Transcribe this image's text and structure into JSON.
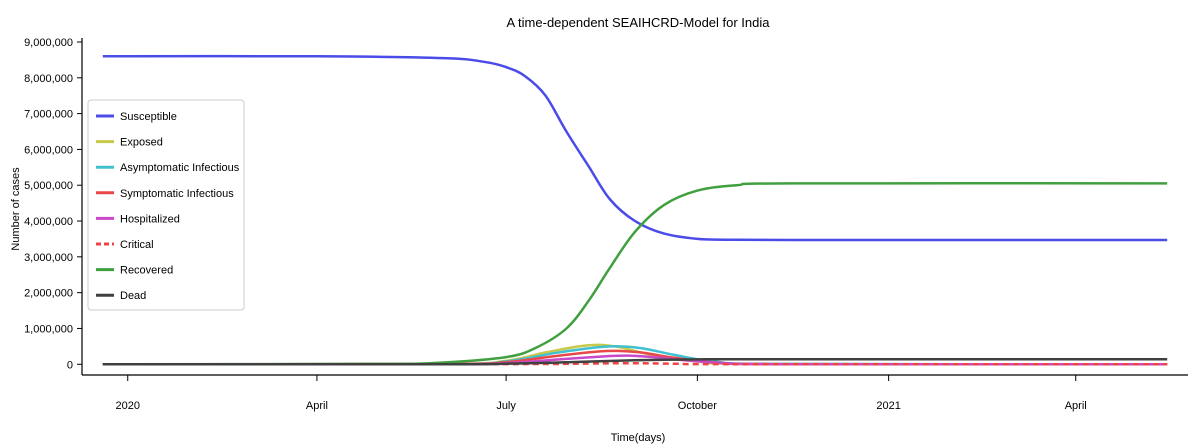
{
  "chart_data": {
    "type": "line",
    "title": "A time-dependent SEAIHCRD-Model for India",
    "xlabel": "Time(days)",
    "ylabel": "Number of cases",
    "x_start": "2019-12-20",
    "x_end": "2021-05-15",
    "xlim": [
      "2019-12-10",
      "2021-05-25"
    ],
    "ylim": [
      -300000,
      9000000
    ],
    "x_ticks": [
      {
        "date": "2020-01-01",
        "label": "2020"
      },
      {
        "date": "2020-04-01",
        "label": "April"
      },
      {
        "date": "2020-07-01",
        "label": "July"
      },
      {
        "date": "2020-10-01",
        "label": "October"
      },
      {
        "date": "2021-01-01",
        "label": "2021"
      },
      {
        "date": "2021-04-01",
        "label": "April"
      }
    ],
    "y_ticks": [
      0,
      1000000,
      2000000,
      3000000,
      4000000,
      5000000,
      6000000,
      7000000,
      8000000,
      9000000
    ],
    "y_tick_labels": [
      "0",
      "1,000,000",
      "2,000,000",
      "3,000,000",
      "4,000,000",
      "5,000,000",
      "6,000,000",
      "7,000,000",
      "8,000,000",
      "9,000,000"
    ],
    "grid": false,
    "legend_position": "left",
    "series": [
      {
        "name": "Susceptible",
        "color": "#4b4be8",
        "dash": false,
        "points": [
          [
            "2019-12-20",
            8600000
          ],
          [
            "2020-04-01",
            8600000
          ],
          [
            "2020-06-01",
            8550000
          ],
          [
            "2020-06-20",
            8450000
          ],
          [
            "2020-07-01",
            8300000
          ],
          [
            "2020-07-10",
            8050000
          ],
          [
            "2020-07-20",
            7500000
          ],
          [
            "2020-07-30",
            6500000
          ],
          [
            "2020-08-10",
            5500000
          ],
          [
            "2020-08-20",
            4600000
          ],
          [
            "2020-09-01",
            4000000
          ],
          [
            "2020-09-15",
            3650000
          ],
          [
            "2020-10-01",
            3500000
          ],
          [
            "2020-10-15",
            3480000
          ],
          [
            "2020-11-15",
            3470000
          ],
          [
            "2021-05-15",
            3470000
          ]
        ]
      },
      {
        "name": "Exposed",
        "color": "#c8c84a",
        "dash": false,
        "points": [
          [
            "2019-12-20",
            0
          ],
          [
            "2020-06-01",
            10000
          ],
          [
            "2020-07-01",
            100000
          ],
          [
            "2020-07-20",
            330000
          ],
          [
            "2020-08-05",
            500000
          ],
          [
            "2020-08-15",
            540000
          ],
          [
            "2020-08-25",
            470000
          ],
          [
            "2020-09-10",
            250000
          ],
          [
            "2020-10-01",
            80000
          ],
          [
            "2020-11-01",
            10000
          ],
          [
            "2021-05-15",
            0
          ]
        ]
      },
      {
        "name": "Asymptomatic Infectious",
        "color": "#40c0d0",
        "dash": false,
        "points": [
          [
            "2019-12-20",
            0
          ],
          [
            "2020-06-01",
            8000
          ],
          [
            "2020-07-01",
            80000
          ],
          [
            "2020-07-25",
            320000
          ],
          [
            "2020-08-15",
            480000
          ],
          [
            "2020-08-25",
            500000
          ],
          [
            "2020-09-05",
            440000
          ],
          [
            "2020-09-20",
            260000
          ],
          [
            "2020-10-10",
            70000
          ],
          [
            "2020-11-10",
            10000
          ],
          [
            "2021-05-15",
            0
          ]
        ]
      },
      {
        "name": "Symptomatic Infectious",
        "color": "#e84848",
        "dash": false,
        "points": [
          [
            "2019-12-20",
            0
          ],
          [
            "2020-06-01",
            5000
          ],
          [
            "2020-07-01",
            60000
          ],
          [
            "2020-07-25",
            230000
          ],
          [
            "2020-08-15",
            360000
          ],
          [
            "2020-08-25",
            370000
          ],
          [
            "2020-09-05",
            320000
          ],
          [
            "2020-09-20",
            180000
          ],
          [
            "2020-10-10",
            50000
          ],
          [
            "2020-11-10",
            5000
          ],
          [
            "2021-05-15",
            0
          ]
        ]
      },
      {
        "name": "Hospitalized",
        "color": "#c84ac8",
        "dash": false,
        "points": [
          [
            "2019-12-20",
            0
          ],
          [
            "2020-06-01",
            3000
          ],
          [
            "2020-07-01",
            30000
          ],
          [
            "2020-07-25",
            130000
          ],
          [
            "2020-08-20",
            230000
          ],
          [
            "2020-08-30",
            240000
          ],
          [
            "2020-09-10",
            200000
          ],
          [
            "2020-09-25",
            110000
          ],
          [
            "2020-10-15",
            30000
          ],
          [
            "2020-11-15",
            3000
          ],
          [
            "2021-05-15",
            0
          ]
        ]
      },
      {
        "name": "Critical",
        "color": "#ee4444",
        "dash": true,
        "points": [
          [
            "2019-12-20",
            0
          ],
          [
            "2020-07-01",
            5000
          ],
          [
            "2020-08-10",
            20000
          ],
          [
            "2020-08-30",
            30000
          ],
          [
            "2020-09-20",
            15000
          ],
          [
            "2020-10-20",
            3000
          ],
          [
            "2021-05-15",
            0
          ]
        ]
      },
      {
        "name": "Recovered",
        "color": "#40a040",
        "dash": false,
        "points": [
          [
            "2019-12-20",
            0
          ],
          [
            "2020-05-01",
            10000
          ],
          [
            "2020-06-01",
            50000
          ],
          [
            "2020-07-01",
            200000
          ],
          [
            "2020-07-15",
            450000
          ],
          [
            "2020-07-30",
            1000000
          ],
          [
            "2020-08-10",
            1800000
          ],
          [
            "2020-08-20",
            2700000
          ],
          [
            "2020-09-01",
            3700000
          ],
          [
            "2020-09-15",
            4450000
          ],
          [
            "2020-10-01",
            4850000
          ],
          [
            "2020-10-20",
            5000000
          ],
          [
            "2020-11-15",
            5050000
          ],
          [
            "2021-05-15",
            5050000
          ]
        ]
      },
      {
        "name": "Dead",
        "color": "#404040",
        "dash": false,
        "points": [
          [
            "2019-12-20",
            0
          ],
          [
            "2020-06-01",
            3000
          ],
          [
            "2020-07-01",
            15000
          ],
          [
            "2020-08-01",
            60000
          ],
          [
            "2020-09-01",
            110000
          ],
          [
            "2020-10-01",
            135000
          ],
          [
            "2020-11-01",
            140000
          ],
          [
            "2021-05-15",
            140000
          ]
        ]
      }
    ]
  }
}
